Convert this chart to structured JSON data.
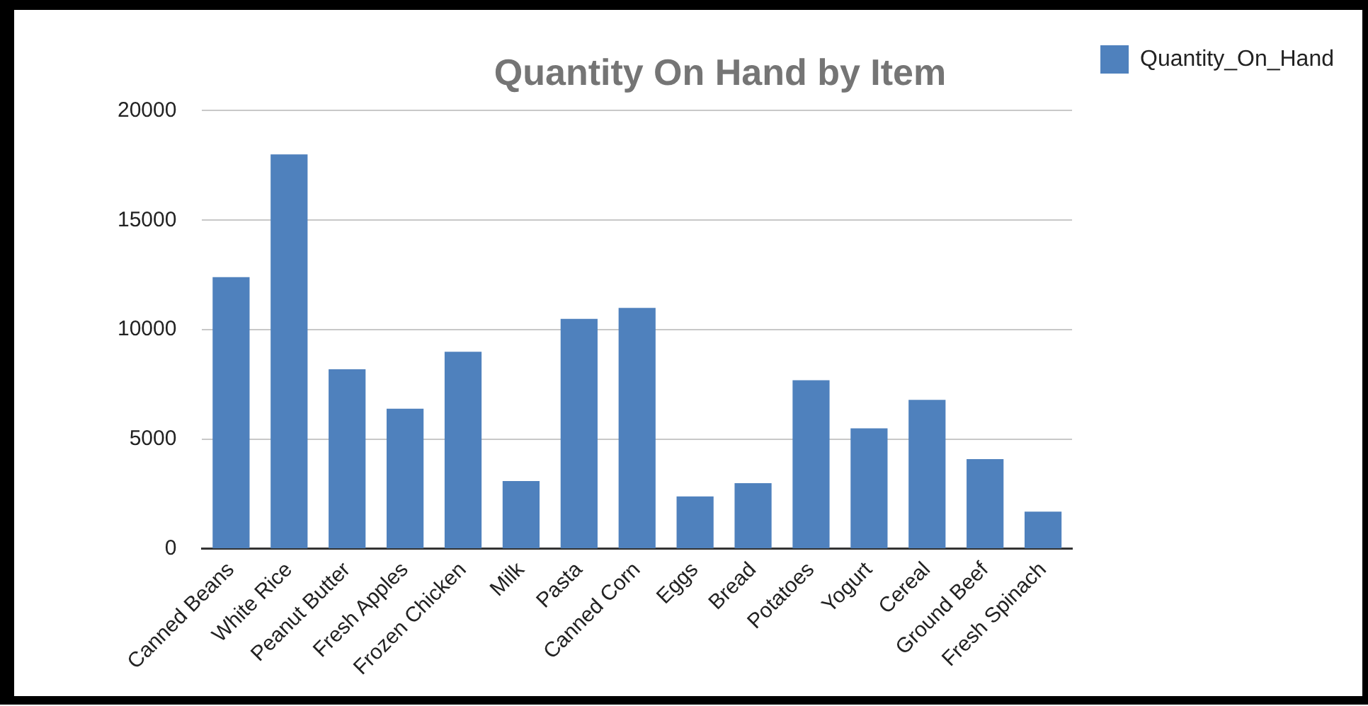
{
  "chart_data": {
    "type": "bar",
    "title": "Quantity On Hand by Item",
    "categories": [
      "Canned Beans",
      "White Rice",
      "Peanut Butter",
      "Fresh Apples",
      "Frozen Chicken",
      "Milk",
      "Pasta",
      "Canned Corn",
      "Eggs",
      "Bread",
      "Potatoes",
      "Yogurt",
      "Cereal",
      "Ground Beef",
      "Fresh Spinach"
    ],
    "series": [
      {
        "name": "Quantity_On_Hand",
        "color": "#4f81bd",
        "values": [
          12400,
          18000,
          8200,
          6400,
          9000,
          3100,
          10500,
          11000,
          2400,
          3000,
          7700,
          5500,
          6800,
          4100,
          1700
        ]
      }
    ],
    "ylim": [
      0,
      20000
    ],
    "yticks": [
      0,
      5000,
      10000,
      15000,
      20000
    ],
    "grid": "y",
    "legend": "top right"
  }
}
